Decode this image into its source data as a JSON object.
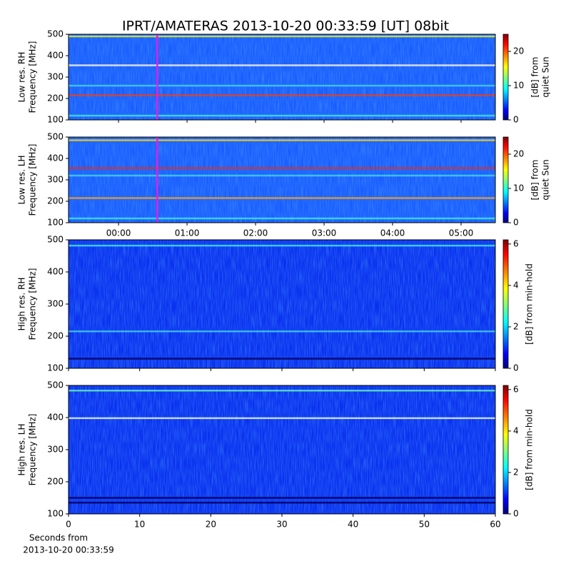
{
  "title": "IPRT/AMATERAS 2013-10-20 00:33:59 [UT]   08bit",
  "chart_data": [
    {
      "type": "heatmap",
      "ylabel": [
        "Low res. RH",
        "Frequency [MHz]"
      ],
      "ylim": [
        100,
        500
      ],
      "yticks": [
        100,
        200,
        300,
        400,
        500
      ],
      "xlim": [
        -0.73,
        5.5
      ],
      "xticks": [
        {
          "value": 0,
          "label": "00:00"
        },
        {
          "value": 1,
          "label": "01:00"
        },
        {
          "value": 2,
          "label": "02:00"
        },
        {
          "value": 3,
          "label": "03:00"
        },
        {
          "value": 4,
          "label": "04:00"
        },
        {
          "value": 5,
          "label": "05:00"
        }
      ],
      "show_xtick_labels": false,
      "marker_x": 0.566,
      "marker_color": "#e020e0",
      "colorbar": {
        "label": [
          "[dB] from",
          "quiet Sun"
        ],
        "lim": [
          0,
          25
        ],
        "ticks": [
          0,
          10,
          20
        ]
      },
      "lines": [
        {
          "freq": 490,
          "color": "#d8e840"
        },
        {
          "freq": 355,
          "color": "#f8f0e0"
        },
        {
          "freq": 260,
          "color": "#40d0f0"
        },
        {
          "freq": 215,
          "color": "#e84020"
        },
        {
          "freq": 120,
          "color": "#40e0e0"
        }
      ]
    },
    {
      "type": "heatmap",
      "ylabel": [
        "Low res. LH",
        "Frequency [MHz]"
      ],
      "ylim": [
        100,
        500
      ],
      "yticks": [
        100,
        200,
        300,
        400,
        500
      ],
      "xlim": [
        -0.73,
        5.5
      ],
      "xticks": [
        {
          "value": 0,
          "label": "00:00"
        },
        {
          "value": 1,
          "label": "01:00"
        },
        {
          "value": 2,
          "label": "02:00"
        },
        {
          "value": 3,
          "label": "03:00"
        },
        {
          "value": 4,
          "label": "04:00"
        },
        {
          "value": 5,
          "label": "05:00"
        }
      ],
      "show_xtick_labels": true,
      "marker_x": 0.566,
      "marker_color": "#e020e0",
      "colorbar": {
        "label": [
          "[dB] from",
          "quiet Sun"
        ],
        "lim": [
          0,
          25
        ],
        "ticks": [
          0,
          10,
          20
        ]
      },
      "lines": [
        {
          "freq": 485,
          "color": "#f0d020"
        },
        {
          "freq": 355,
          "color": "#e03020"
        },
        {
          "freq": 320,
          "color": "#40d0f0"
        },
        {
          "freq": 215,
          "color": "#f0a020"
        },
        {
          "freq": 120,
          "color": "#40e0e0"
        }
      ]
    },
    {
      "type": "heatmap",
      "ylabel": [
        "High res. RH",
        "Frequency [MHz]"
      ],
      "ylim": [
        100,
        500
      ],
      "yticks": [
        100,
        200,
        300,
        400,
        500
      ],
      "xlim": [
        0,
        60
      ],
      "xticks": [
        0,
        10,
        20,
        30,
        40,
        50,
        60
      ],
      "show_xtick_labels": false,
      "colorbar": {
        "label": [
          "[dB] from min-hold"
        ],
        "lim": [
          0,
          6.2
        ],
        "ticks": [
          0,
          2,
          4,
          6
        ]
      },
      "lines": [
        {
          "freq": 482,
          "color": "#40e0e0"
        },
        {
          "freq": 215,
          "color": "#40c8f0"
        },
        {
          "freq": 130,
          "color": "#000060"
        }
      ]
    },
    {
      "type": "heatmap",
      "ylabel": [
        "High res. LH",
        "Frequency [MHz]"
      ],
      "ylim": [
        100,
        500
      ],
      "yticks": [
        100,
        200,
        300,
        400,
        500
      ],
      "xlim": [
        0,
        60
      ],
      "xticks": [
        0,
        10,
        20,
        30,
        40,
        50,
        60
      ],
      "show_xtick_labels": true,
      "xlabel": [
        "Seconds from",
        "2013-10-20 00:33:59"
      ],
      "colorbar": {
        "label": [
          "[dB] from min-hold"
        ],
        "lim": [
          0,
          6.2
        ],
        "ticks": [
          0,
          2,
          4,
          6
        ]
      },
      "lines": [
        {
          "freq": 484,
          "color": "#60e8c0"
        },
        {
          "freq": 398,
          "color": "#e0f0ff"
        },
        {
          "freq": 150,
          "color": "#000060"
        },
        {
          "freq": 135,
          "color": "#000060"
        }
      ]
    }
  ]
}
